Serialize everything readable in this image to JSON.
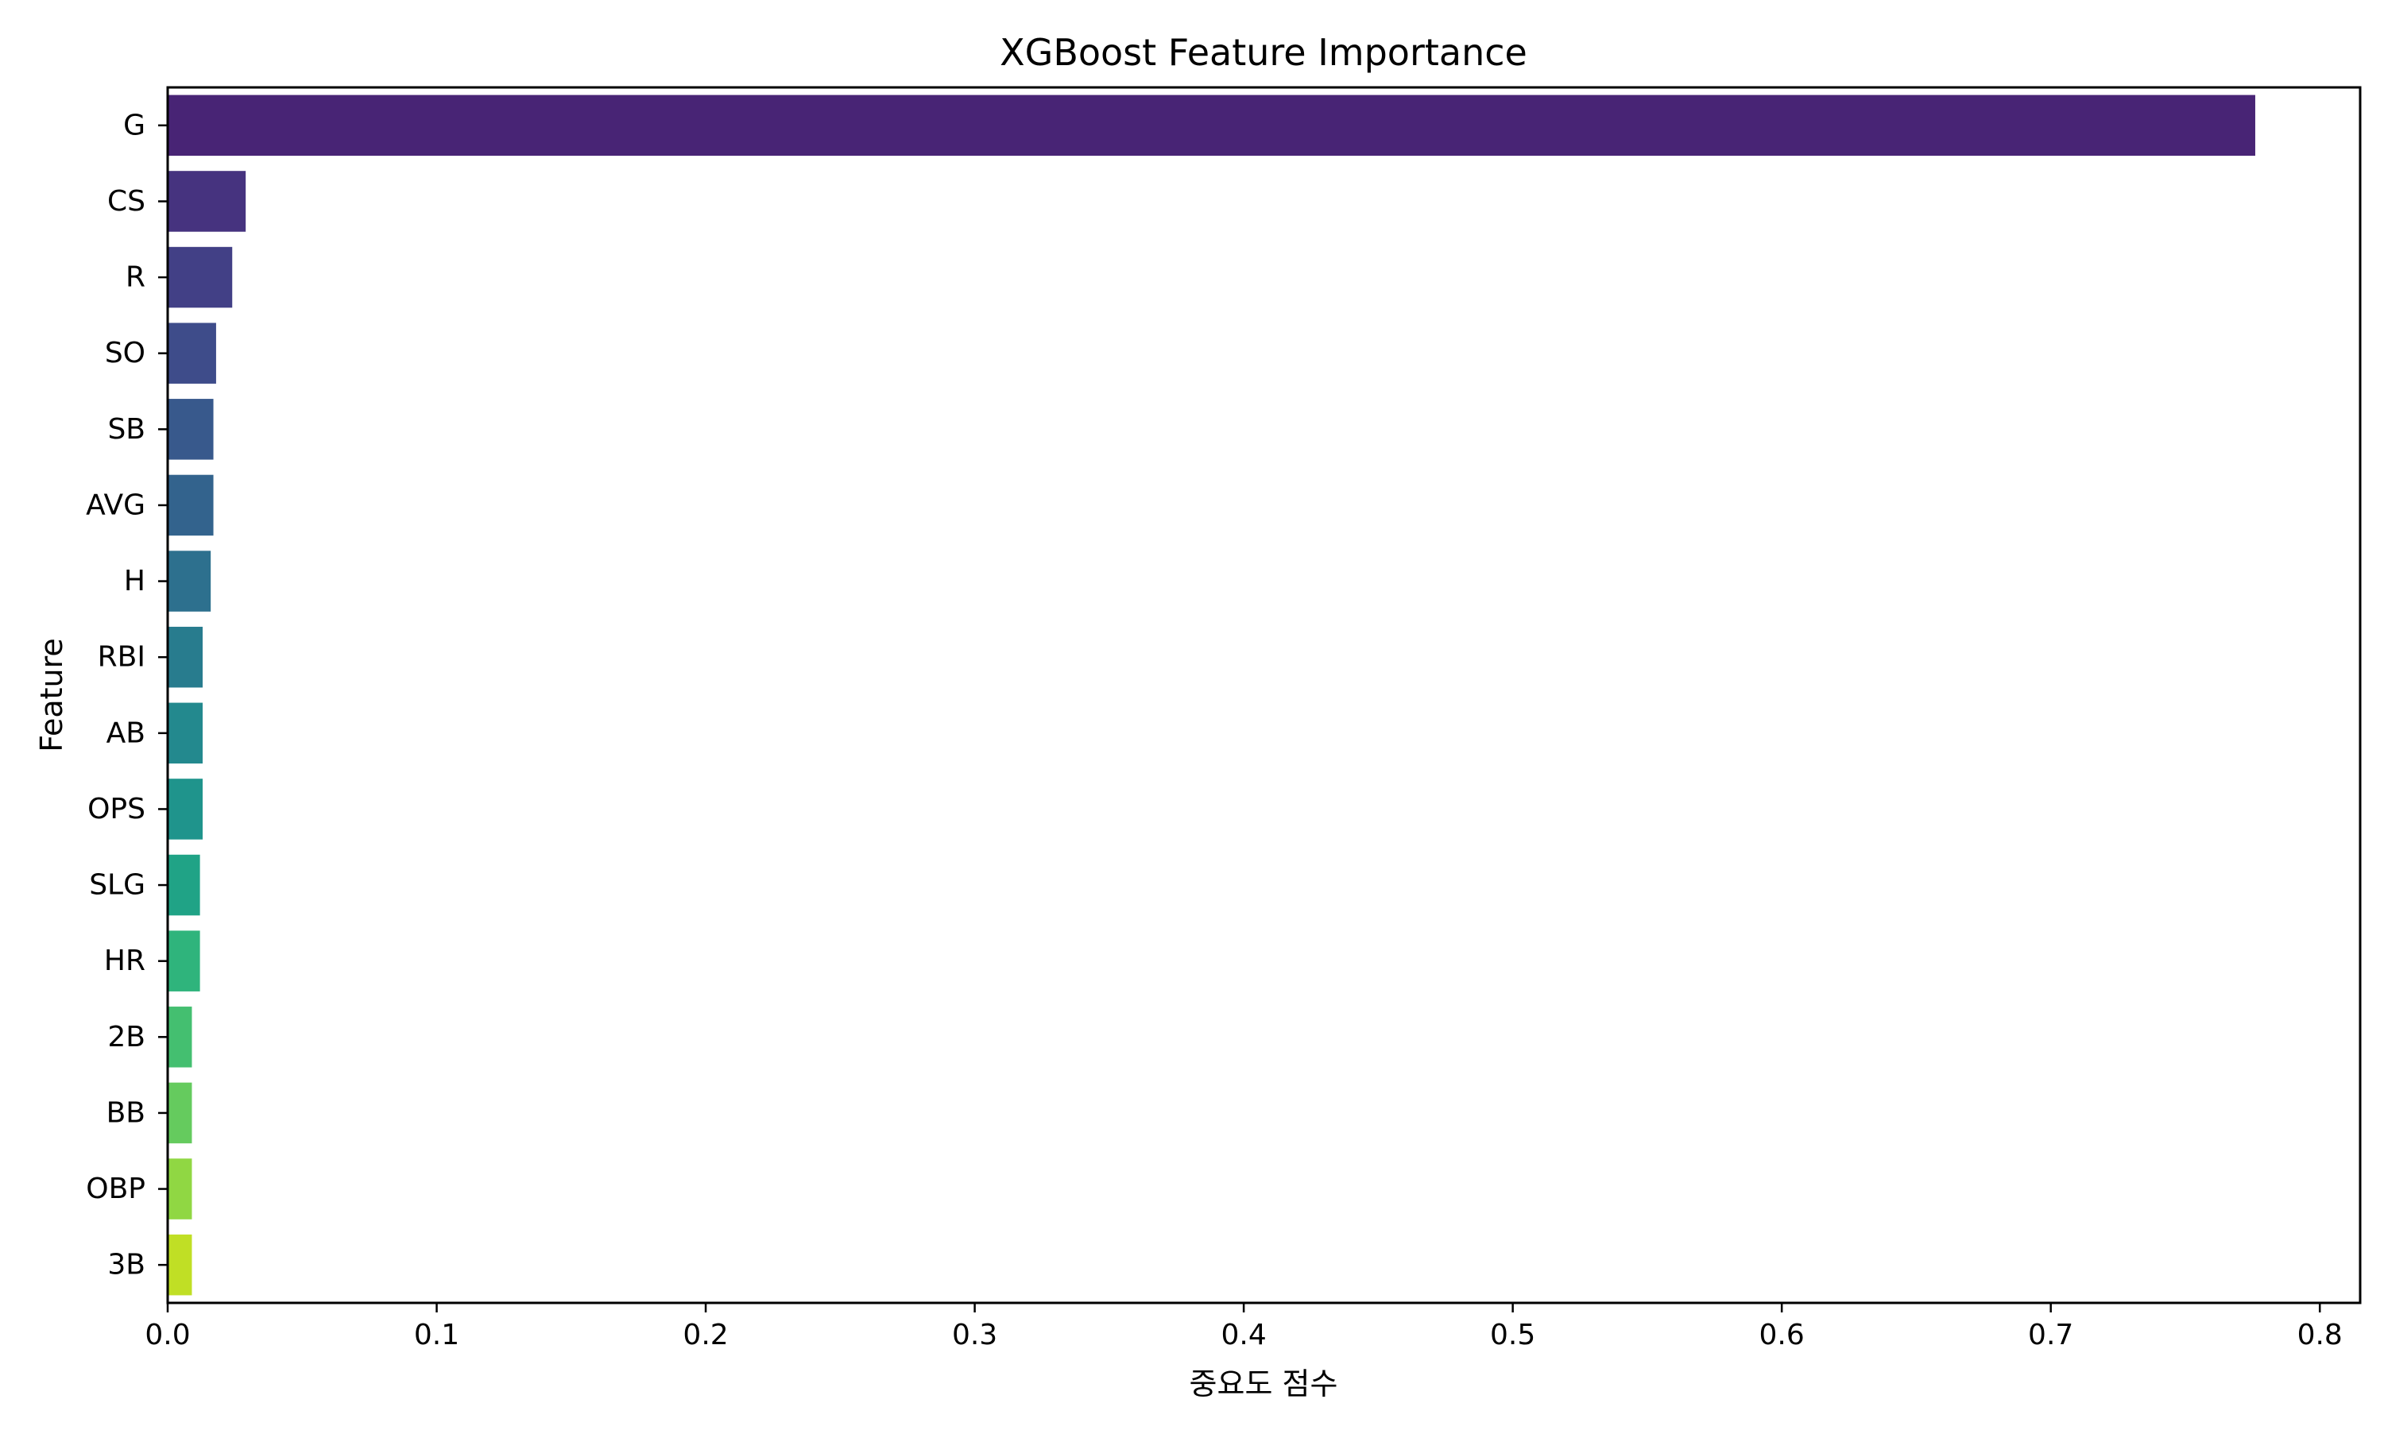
{
  "chart_data": {
    "type": "bar",
    "orientation": "horizontal",
    "title": "XGBoost Feature Importance",
    "xlabel": "중요도 점수",
    "ylabel": "Feature",
    "categories": [
      "G",
      "CS",
      "R",
      "SO",
      "SB",
      "AVG",
      "H",
      "RBI",
      "AB",
      "OPS",
      "SLG",
      "HR",
      "2B",
      "BB",
      "OBP",
      "3B"
    ],
    "values": [
      0.776,
      0.029,
      0.024,
      0.018,
      0.017,
      0.017,
      0.016,
      0.013,
      0.013,
      0.013,
      0.012,
      0.012,
      0.009,
      0.009,
      0.009,
      0.009
    ],
    "colors": [
      "#482475",
      "#46337f",
      "#424086",
      "#3e4c8a",
      "#38598c",
      "#33638d",
      "#2d708e",
      "#287c8e",
      "#23898e",
      "#1f948c",
      "#20a386",
      "#2fb47c",
      "#44bf70",
      "#65cb5e",
      "#90d743",
      "#c0df25"
    ],
    "xlim": [
      0.0,
      0.815
    ],
    "xticks": [
      0.0,
      0.1,
      0.2,
      0.3,
      0.4,
      0.5,
      0.6,
      0.7,
      0.8
    ],
    "xtick_labels": [
      "0.0",
      "0.1",
      "0.2",
      "0.3",
      "0.4",
      "0.5",
      "0.6",
      "0.7",
      "0.8"
    ],
    "grid": false,
    "legend": "none"
  }
}
